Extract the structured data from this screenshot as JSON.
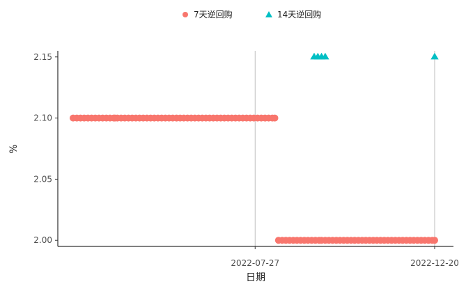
{
  "chart_data": {
    "type": "scatter",
    "xlabel": "日期",
    "ylabel": "%",
    "x_start": "2022-03-01",
    "x_end": "2022-12-20",
    "ylim": [
      1.995,
      2.155
    ],
    "y_ticks": [
      2.0,
      2.05,
      2.1,
      2.15
    ],
    "x_ticks": [
      "2022-07-27",
      "2022-12-20"
    ],
    "reference_lines": [
      "2022-07-27",
      "2022-12-20"
    ],
    "legend_position": "top",
    "grid": false,
    "series": [
      {
        "name": "7天逆回购",
        "color": "#F8766D",
        "marker": "circle",
        "segments": [
          {
            "start": "2022-03-01",
            "end": "2022-04-04",
            "value": 2.1
          },
          {
            "start": "2022-04-06",
            "end": "2022-08-12",
            "value": 2.1
          },
          {
            "start": "2022-08-15",
            "end": "2022-09-19",
            "value": 2.0
          },
          {
            "start": "2022-09-22",
            "end": "2022-12-20",
            "value": 2.0
          }
        ]
      },
      {
        "name": "14天逆回购",
        "color": "#00BFC4",
        "marker": "triangle",
        "segments": [
          {
            "start": "2022-09-13",
            "end": "2022-09-22",
            "value": 2.15
          },
          {
            "start": "2022-12-20",
            "end": "2022-12-20",
            "value": 2.15
          }
        ]
      }
    ]
  }
}
